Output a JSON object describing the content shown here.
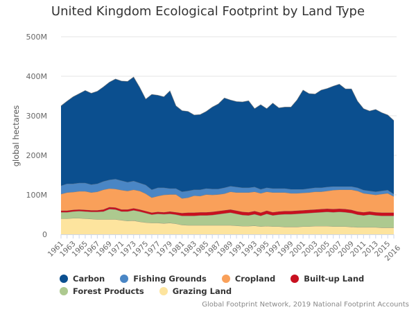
{
  "chart_data": {
    "type": "area",
    "stacked": true,
    "title": "United Kingdom Ecological Footprint by Land Type",
    "ylabel": "global hectares",
    "xlabel": "",
    "ylim": [
      0,
      500000000
    ],
    "yticks": [
      "0",
      "100M",
      "200M",
      "300M",
      "400M",
      "500M"
    ],
    "grid": true,
    "legend_position": "bottom",
    "credit": "Global Footprint Network, 2019 National Footprint Accounts",
    "x": [
      1961,
      1962,
      1963,
      1964,
      1965,
      1966,
      1967,
      1968,
      1969,
      1970,
      1971,
      1972,
      1973,
      1974,
      1975,
      1976,
      1977,
      1978,
      1979,
      1980,
      1981,
      1982,
      1983,
      1984,
      1985,
      1986,
      1987,
      1988,
      1989,
      1990,
      1991,
      1992,
      1993,
      1994,
      1995,
      1996,
      1997,
      1998,
      1999,
      2000,
      2001,
      2002,
      2003,
      2004,
      2005,
      2006,
      2007,
      2008,
      2009,
      2010,
      2011,
      2012,
      2013,
      2014,
      2015,
      2016
    ],
    "xtick_labels": [
      "1961",
      "1963",
      "1965",
      "1967",
      "1969",
      "1971",
      "1973",
      "1975",
      "1977",
      "1979",
      "1981",
      "1983",
      "1985",
      "1987",
      "1989",
      "1991",
      "1993",
      "1995",
      "1997",
      "1999",
      "2001",
      "2003",
      "2005",
      "2007",
      "2009",
      "2011",
      "2013",
      "2015",
      "2016"
    ],
    "units": "millions of global hectares",
    "series": [
      {
        "name": "Grazing Land",
        "color": "#fde49e",
        "values": [
          40,
          40,
          41,
          41,
          40,
          39,
          38,
          38,
          38,
          38,
          36,
          34,
          35,
          32,
          30,
          29,
          29,
          28,
          29,
          27,
          24,
          23,
          23,
          23,
          23,
          23,
          23,
          23,
          23,
          22,
          21,
          21,
          22,
          20,
          21,
          20,
          20,
          19,
          19,
          19,
          20,
          20,
          21,
          21,
          21,
          20,
          20,
          20,
          19,
          18,
          18,
          18,
          18,
          17,
          17,
          17
        ]
      },
      {
        "name": "Forest Products",
        "color": "#adc98f",
        "values": [
          16,
          16,
          17,
          18,
          18,
          18,
          19,
          20,
          26,
          25,
          22,
          24,
          26,
          26,
          24,
          21,
          23,
          23,
          23,
          23,
          23,
          24,
          24,
          25,
          25,
          26,
          28,
          30,
          32,
          30,
          28,
          27,
          29,
          27,
          31,
          28,
          30,
          32,
          32,
          33,
          33,
          34,
          34,
          35,
          36,
          36,
          37,
          36,
          35,
          32,
          30,
          32,
          30,
          30,
          30,
          30
        ]
      },
      {
        "name": "Built-up Land",
        "color": "#c8101f",
        "values": [
          4,
          4,
          4,
          4,
          4,
          4,
          4,
          5,
          5,
          5,
          5,
          5,
          5,
          5,
          5,
          5,
          5,
          5,
          6,
          6,
          7,
          8,
          8,
          8,
          8,
          8,
          8,
          8,
          8,
          8,
          8,
          8,
          8,
          8,
          8,
          8,
          8,
          8,
          8,
          8,
          8,
          8,
          8,
          8,
          8,
          8,
          8,
          8,
          8,
          8,
          8,
          8,
          8,
          8,
          8,
          8
        ]
      },
      {
        "name": "Cropland",
        "color": "#f9a05a",
        "values": [
          42,
          46,
          45,
          46,
          47,
          45,
          47,
          50,
          47,
          47,
          49,
          47,
          47,
          47,
          44,
          38,
          40,
          44,
          43,
          45,
          37,
          38,
          43,
          41,
          45,
          43,
          42,
          42,
          45,
          46,
          49,
          50,
          49,
          49,
          48,
          50,
          48,
          47,
          45,
          44,
          44,
          44,
          45,
          44,
          45,
          48,
          48,
          49,
          51,
          52,
          48,
          44,
          44,
          47,
          49,
          41
        ]
      },
      {
        "name": "Fishing Grounds",
        "color": "#4a86c5",
        "values": [
          21,
          22,
          21,
          21,
          21,
          20,
          20,
          21,
          22,
          25,
          24,
          22,
          22,
          20,
          22,
          20,
          21,
          18,
          15,
          15,
          17,
          17,
          15,
          16,
          15,
          15,
          14,
          15,
          14,
          14,
          12,
          12,
          12,
          10,
          10,
          10,
          10,
          10,
          10,
          10,
          9,
          10,
          10,
          10,
          10,
          9,
          8,
          8,
          8,
          8,
          8,
          8,
          8,
          8,
          8,
          6
        ]
      },
      {
        "name": "Carbon",
        "color": "#0b4f8f",
        "values": [
          202,
          209,
          220,
          226,
          234,
          231,
          234,
          239,
          247,
          253,
          252,
          255,
          263,
          242,
          217,
          241,
          234,
          230,
          247,
          209,
          205,
          201,
          189,
          190,
          195,
          207,
          215,
          227,
          218,
          216,
          217,
          220,
          198,
          214,
          200,
          216,
          204,
          206,
          208,
          226,
          251,
          240,
          237,
          247,
          249,
          254,
          259,
          247,
          247,
          219,
          206,
          202,
          208,
          198,
          190,
          186
        ]
      }
    ],
    "legend_order": [
      "Carbon",
      "Fishing Grounds",
      "Cropland",
      "Built-up Land",
      "Forest Products",
      "Grazing Land"
    ]
  }
}
